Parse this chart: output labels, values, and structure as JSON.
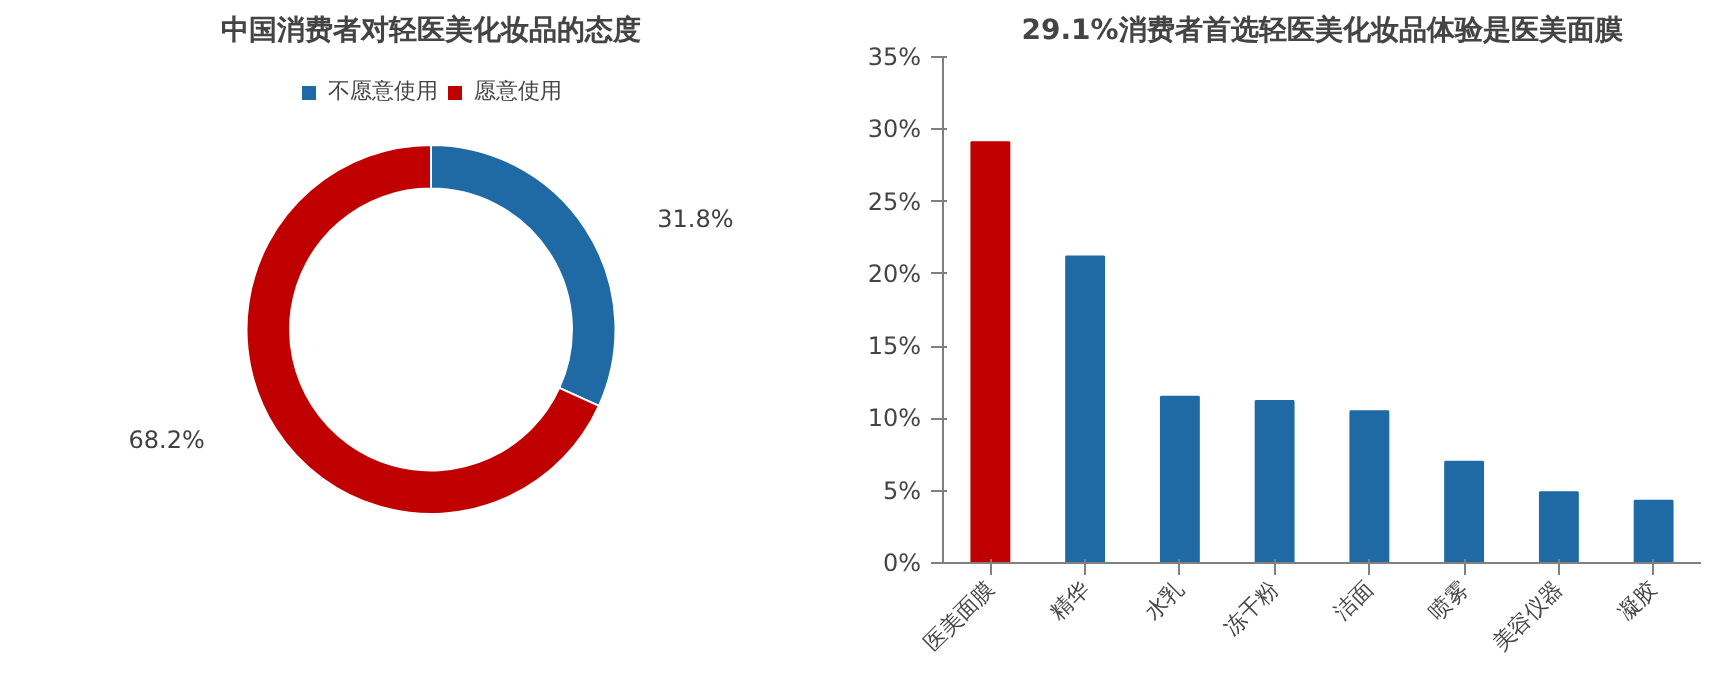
{
  "chart_data": [
    {
      "type": "donut",
      "title": "中国消费者对轻医美化妆品的态度",
      "categories": [
        "不愿意使用",
        "愿意使用"
      ],
      "values": [
        31.8,
        68.2
      ],
      "colors": [
        "#1f6aa5",
        "#c00000"
      ],
      "value_labels": [
        "31.8%",
        "68.2%"
      ],
      "legend": "top"
    },
    {
      "type": "bar",
      "title": "29.1%消费者首选轻医美化妆品体验是医美面膜",
      "categories": [
        "医美面膜",
        "精华",
        "水乳",
        "冻干粉",
        "洁面",
        "喷雾",
        "美容仪器",
        "凝胶"
      ],
      "values": [
        29.1,
        21.2,
        11.5,
        11.2,
        10.5,
        7.0,
        4.9,
        4.3
      ],
      "colors": [
        "#c00000",
        "#1f6aa5",
        "#1f6aa5",
        "#1f6aa5",
        "#1f6aa5",
        "#1f6aa5",
        "#1f6aa5",
        "#1f6aa5"
      ],
      "ylim": [
        0,
        35
      ],
      "yticks": [
        {
          "value": 0,
          "label": "0%"
        },
        {
          "value": 5,
          "label": "5%"
        },
        {
          "value": 10,
          "label": "10%"
        },
        {
          "value": 15,
          "label": "15%"
        },
        {
          "value": 20,
          "label": "20%"
        },
        {
          "value": 25,
          "label": "25%"
        },
        {
          "value": 30,
          "label": "30%"
        },
        {
          "value": 35,
          "label": "35%"
        }
      ],
      "grid": false
    }
  ]
}
